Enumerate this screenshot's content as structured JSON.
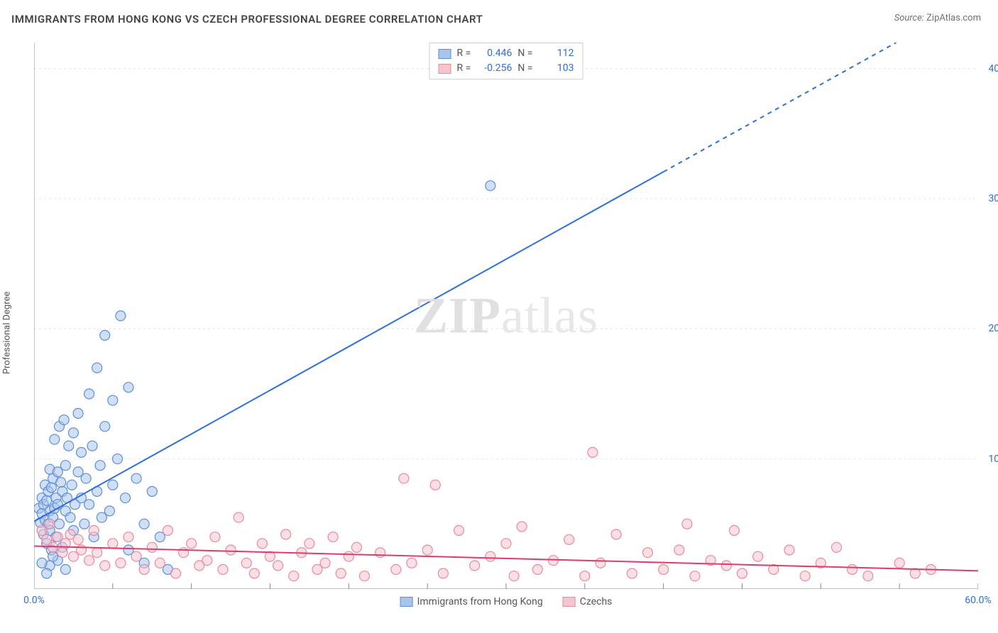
{
  "title": "IMMIGRANTS FROM HONG KONG VS CZECH PROFESSIONAL DEGREE CORRELATION CHART",
  "source": {
    "label": "Source:",
    "value": "ZipAtlas.com"
  },
  "ylabel": "Professional Degree",
  "watermark": {
    "bold": "ZIP",
    "rest": "atlas"
  },
  "chart": {
    "type": "scatter",
    "xlim": [
      0,
      60
    ],
    "ylim": [
      0,
      42
    ],
    "xtick_positions": [
      0,
      5,
      10,
      15,
      20,
      25,
      30,
      35,
      40,
      45,
      50,
      55,
      60
    ],
    "xtick_labels": {
      "0": "0.0%",
      "60": "60.0%"
    },
    "ytick_grid": [
      10,
      20,
      30,
      40
    ],
    "ytick_labels": {
      "10": "10.0%",
      "20": "20.0%",
      "30": "30.0%",
      "40": "40.0%"
    },
    "background_color": "#ffffff",
    "grid_color": "#e5e5e5",
    "axis_color": "#888888",
    "tick_color": "#888888",
    "series": [
      {
        "name": "Immigrants from Hong Kong",
        "marker_fill": "#a9c5ec",
        "marker_stroke": "#5b8fd6",
        "marker_r": 7,
        "trend": {
          "color": "#2e6fdb",
          "width": 2,
          "x1": 0,
          "y1": 5.2,
          "x2": 60,
          "y2": 45.5,
          "solid_until_x": 40
        },
        "R": "0.446",
        "N": "112",
        "points": [
          [
            0.3,
            6.2
          ],
          [
            0.4,
            5.1
          ],
          [
            0.5,
            7.0
          ],
          [
            0.5,
            5.8
          ],
          [
            0.6,
            6.5
          ],
          [
            0.6,
            4.2
          ],
          [
            0.7,
            8.0
          ],
          [
            0.7,
            5.3
          ],
          [
            0.8,
            6.8
          ],
          [
            0.8,
            3.5
          ],
          [
            0.9,
            7.5
          ],
          [
            0.9,
            5.0
          ],
          [
            1.0,
            9.2
          ],
          [
            1.0,
            6.0
          ],
          [
            1.0,
            4.5
          ],
          [
            1.1,
            7.8
          ],
          [
            1.1,
            3.0
          ],
          [
            1.2,
            8.5
          ],
          [
            1.2,
            5.5
          ],
          [
            1.3,
            6.2
          ],
          [
            1.3,
            11.5
          ],
          [
            1.4,
            7.0
          ],
          [
            1.4,
            4.0
          ],
          [
            1.5,
            9.0
          ],
          [
            1.5,
            6.5
          ],
          [
            1.6,
            12.5
          ],
          [
            1.6,
            5.0
          ],
          [
            1.7,
            8.2
          ],
          [
            1.8,
            7.5
          ],
          [
            1.8,
            3.2
          ],
          [
            1.9,
            13.0
          ],
          [
            2.0,
            6.0
          ],
          [
            2.0,
            9.5
          ],
          [
            2.1,
            7.0
          ],
          [
            2.2,
            11.0
          ],
          [
            2.3,
            5.5
          ],
          [
            2.4,
            8.0
          ],
          [
            2.5,
            12.0
          ],
          [
            2.5,
            4.5
          ],
          [
            2.6,
            6.5
          ],
          [
            2.8,
            9.0
          ],
          [
            2.8,
            13.5
          ],
          [
            3.0,
            7.0
          ],
          [
            3.0,
            10.5
          ],
          [
            3.2,
            5.0
          ],
          [
            3.3,
            8.5
          ],
          [
            3.5,
            15.0
          ],
          [
            3.5,
            6.5
          ],
          [
            3.7,
            11.0
          ],
          [
            3.8,
            4.0
          ],
          [
            4.0,
            17.0
          ],
          [
            4.0,
            7.5
          ],
          [
            4.2,
            9.5
          ],
          [
            4.3,
            5.5
          ],
          [
            4.5,
            12.5
          ],
          [
            4.5,
            19.5
          ],
          [
            4.8,
            6.0
          ],
          [
            5.0,
            14.5
          ],
          [
            5.0,
            8.0
          ],
          [
            5.3,
            10.0
          ],
          [
            5.5,
            21.0
          ],
          [
            5.8,
            7.0
          ],
          [
            6.0,
            15.5
          ],
          [
            6.0,
            3.0
          ],
          [
            6.5,
            8.5
          ],
          [
            7.0,
            5.0
          ],
          [
            7.0,
            2.0
          ],
          [
            7.5,
            7.5
          ],
          [
            8.0,
            4.0
          ],
          [
            8.5,
            1.5
          ],
          [
            1.0,
            1.8
          ],
          [
            1.5,
            2.2
          ],
          [
            2.0,
            1.5
          ],
          [
            0.5,
            2.0
          ],
          [
            0.8,
            1.2
          ],
          [
            1.2,
            2.5
          ],
          [
            29.0,
            31.0
          ]
        ]
      },
      {
        "name": "Czechs",
        "marker_fill": "#f6c4ce",
        "marker_stroke": "#e88aa0",
        "marker_r": 7,
        "trend": {
          "color": "#e23a6a",
          "width": 2,
          "x1": 0,
          "y1": 3.3,
          "x2": 60,
          "y2": 1.4,
          "solid_until_x": 60
        },
        "R": "-0.256",
        "N": "103",
        "points": [
          [
            0.5,
            4.5
          ],
          [
            0.8,
            3.8
          ],
          [
            1.0,
            5.0
          ],
          [
            1.2,
            3.2
          ],
          [
            1.5,
            4.0
          ],
          [
            1.8,
            2.8
          ],
          [
            2.0,
            3.5
          ],
          [
            2.3,
            4.2
          ],
          [
            2.5,
            2.5
          ],
          [
            2.8,
            3.8
          ],
          [
            3.0,
            3.0
          ],
          [
            3.5,
            2.2
          ],
          [
            3.8,
            4.5
          ],
          [
            4.0,
            2.8
          ],
          [
            4.5,
            1.8
          ],
          [
            5.0,
            3.5
          ],
          [
            5.5,
            2.0
          ],
          [
            6.0,
            4.0
          ],
          [
            6.5,
            2.5
          ],
          [
            7.0,
            1.5
          ],
          [
            7.5,
            3.2
          ],
          [
            8.0,
            2.0
          ],
          [
            8.5,
            4.5
          ],
          [
            9.0,
            1.2
          ],
          [
            9.5,
            2.8
          ],
          [
            10.0,
            3.5
          ],
          [
            10.5,
            1.8
          ],
          [
            11.0,
            2.2
          ],
          [
            11.5,
            4.0
          ],
          [
            12.0,
            1.5
          ],
          [
            12.5,
            3.0
          ],
          [
            13.0,
            5.5
          ],
          [
            13.5,
            2.0
          ],
          [
            14.0,
            1.2
          ],
          [
            14.5,
            3.5
          ],
          [
            15.0,
            2.5
          ],
          [
            15.5,
            1.8
          ],
          [
            16.0,
            4.2
          ],
          [
            16.5,
            1.0
          ],
          [
            17.0,
            2.8
          ],
          [
            17.5,
            3.5
          ],
          [
            18.0,
            1.5
          ],
          [
            18.5,
            2.0
          ],
          [
            19.0,
            4.0
          ],
          [
            19.5,
            1.2
          ],
          [
            20.0,
            2.5
          ],
          [
            20.5,
            3.2
          ],
          [
            21.0,
            1.0
          ],
          [
            22.0,
            2.8
          ],
          [
            23.0,
            1.5
          ],
          [
            23.5,
            8.5
          ],
          [
            24.0,
            2.0
          ],
          [
            25.0,
            3.0
          ],
          [
            25.5,
            8.0
          ],
          [
            26.0,
            1.2
          ],
          [
            27.0,
            4.5
          ],
          [
            28.0,
            1.8
          ],
          [
            29.0,
            2.5
          ],
          [
            30.0,
            3.5
          ],
          [
            30.5,
            1.0
          ],
          [
            31.0,
            4.8
          ],
          [
            32.0,
            1.5
          ],
          [
            33.0,
            2.2
          ],
          [
            34.0,
            3.8
          ],
          [
            35.0,
            1.0
          ],
          [
            35.5,
            10.5
          ],
          [
            36.0,
            2.0
          ],
          [
            37.0,
            4.2
          ],
          [
            38.0,
            1.2
          ],
          [
            39.0,
            2.8
          ],
          [
            40.0,
            1.5
          ],
          [
            41.0,
            3.0
          ],
          [
            41.5,
            5.0
          ],
          [
            42.0,
            1.0
          ],
          [
            43.0,
            2.2
          ],
          [
            44.0,
            1.8
          ],
          [
            44.5,
            4.5
          ],
          [
            45.0,
            1.2
          ],
          [
            46.0,
            2.5
          ],
          [
            47.0,
            1.5
          ],
          [
            48.0,
            3.0
          ],
          [
            49.0,
            1.0
          ],
          [
            50.0,
            2.0
          ],
          [
            51.0,
            3.2
          ],
          [
            52.0,
            1.5
          ],
          [
            53.0,
            1.0
          ],
          [
            55.0,
            2.0
          ],
          [
            56.0,
            1.2
          ],
          [
            57.0,
            1.5
          ]
        ]
      }
    ]
  },
  "legend_labels": {
    "r": "R =",
    "n": "N ="
  }
}
